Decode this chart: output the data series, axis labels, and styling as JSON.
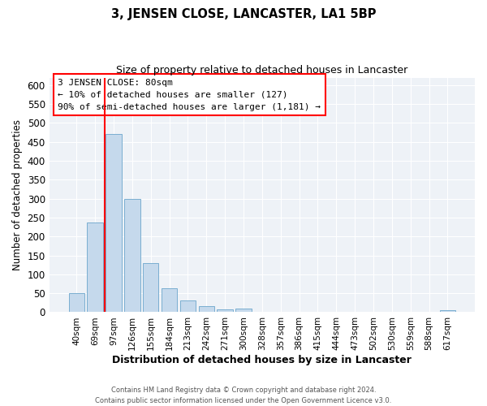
{
  "title": "3, JENSEN CLOSE, LANCASTER, LA1 5BP",
  "subtitle": "Size of property relative to detached houses in Lancaster",
  "xlabel": "Distribution of detached houses by size in Lancaster",
  "ylabel": "Number of detached properties",
  "categories": [
    "40sqm",
    "69sqm",
    "97sqm",
    "126sqm",
    "155sqm",
    "184sqm",
    "213sqm",
    "242sqm",
    "271sqm",
    "300sqm",
    "328sqm",
    "357sqm",
    "386sqm",
    "415sqm",
    "444sqm",
    "473sqm",
    "502sqm",
    "530sqm",
    "559sqm",
    "588sqm",
    "617sqm"
  ],
  "values": [
    50,
    238,
    470,
    300,
    130,
    63,
    30,
    17,
    8,
    10,
    0,
    0,
    0,
    0,
    0,
    0,
    0,
    0,
    0,
    0,
    5
  ],
  "bar_color": "#c5d9ec",
  "bar_edge_color": "#7aaed0",
  "ylim": [
    0,
    620
  ],
  "yticks": [
    0,
    50,
    100,
    150,
    200,
    250,
    300,
    350,
    400,
    450,
    500,
    550,
    600
  ],
  "red_line_x": 1.5,
  "annotation_text_line1": "3 JENSEN CLOSE: 80sqm",
  "annotation_text_line2": "← 10% of detached houses are smaller (127)",
  "annotation_text_line3": "90% of semi-detached houses are larger (1,181) →",
  "footer_line1": "Contains HM Land Registry data © Crown copyright and database right 2024.",
  "footer_line2": "Contains public sector information licensed under the Open Government Licence v3.0.",
  "background_color": "#eef2f7"
}
